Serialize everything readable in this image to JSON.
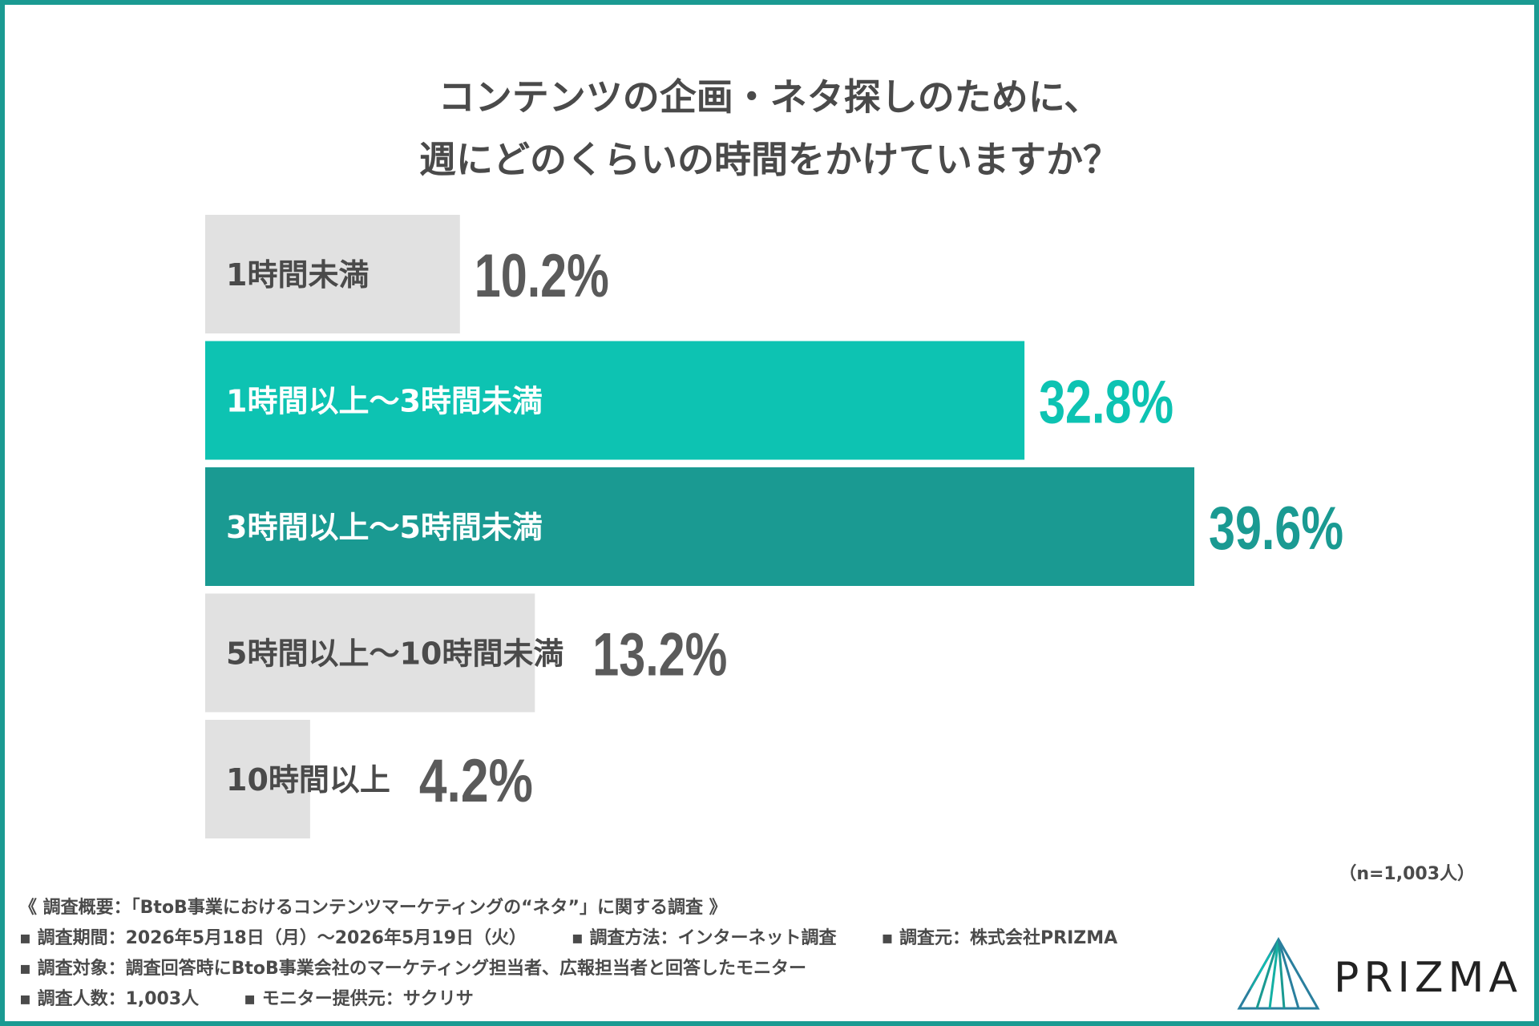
{
  "title_lines": [
    "コンテンツの企画・ネタ探しのために、",
    "週にどのくらいの時間をかけていますか？"
  ],
  "chart_data": {
    "type": "bar",
    "orientation": "horizontal",
    "categories": [
      "1時間未満",
      "1時間以上～3時間未満",
      "3時間以上～5時間未満",
      "5時間以上～10時間未満",
      "10時間以上"
    ],
    "values": [
      10.2,
      32.8,
      39.6,
      13.2,
      4.2
    ],
    "value_labels": [
      "10.2%",
      "32.8%",
      "39.6%",
      "13.2%",
      "4.2%"
    ],
    "unit": "%",
    "xlim": [
      0,
      39.6
    ],
    "grid": false,
    "bar_colors": [
      "#e1e1e1",
      "#0dc3b2",
      "#1a9a92",
      "#e1e1e1",
      "#e1e1e1"
    ],
    "label_colors": [
      "#4a4a4a",
      "#ffffff",
      "#ffffff",
      "#4a4a4a",
      "#4a4a4a"
    ],
    "value_colors": [
      "#5a5a5a",
      "#0dc3b2",
      "#1a9a92",
      "#5a5a5a",
      "#5a5a5a"
    ]
  },
  "sample_note": "（n=1,003人）",
  "survey": {
    "overview": "《 調査概要：「BtoB事業におけるコンテンツマーケティングの“ネタ”」に関する調査 》",
    "period": "▪ 調査期間：2026年5月18日（月）～2026年5月19日（火）",
    "method": "▪ 調査方法：インターネット調査",
    "source": "▪ 調査元：株式会社PRIZMA",
    "target": "▪ 調査対象：調査回答時にBtoB事業会社のマーケティング担当者、広報担当者と回答したモニター",
    "count": "▪ 調査人数：1,003人",
    "provider": "▪ モニター提供元：サクリサ"
  },
  "logo": {
    "text": "PRIZMA",
    "icon": "prizma-logo-icon"
  },
  "colors": {
    "frame": "#1a9a92",
    "accent_light": "#0dc3b2",
    "accent_dark": "#1a9a92",
    "bar_gray": "#e1e1e1",
    "text": "#4a4a4a"
  }
}
